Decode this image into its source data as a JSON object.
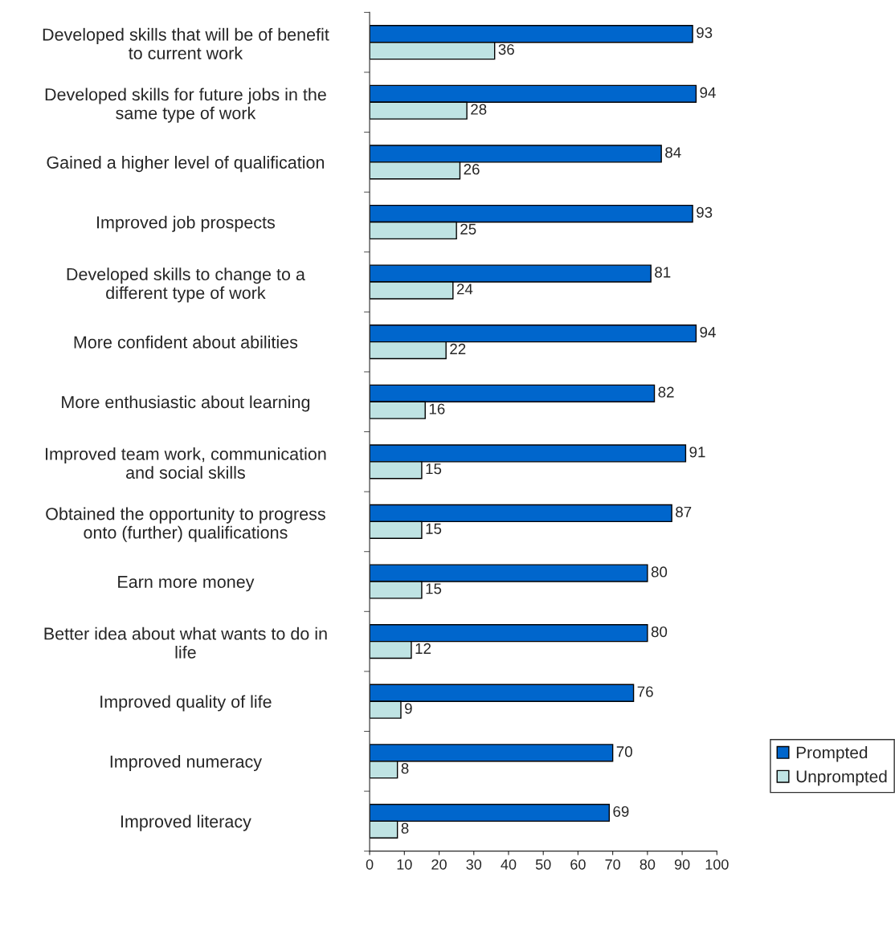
{
  "chart_data": {
    "type": "bar",
    "orientation": "horizontal",
    "categories": [
      "Developed skills that will be of benefit\nto current work",
      "Developed skills for future jobs in the\nsame type of work",
      "Gained a higher level of qualification",
      "Improved job prospects",
      "Developed skills to change to a\ndifferent type of work",
      "More confident about abilities",
      "More enthusiastic about learning",
      "Improved team work, communication\nand social skills",
      "Obtained the opportunity to progress\nonto (further) qualifications",
      "Earn more money",
      "Better idea about what wants to do in\nlife",
      "Improved quality of life",
      "Improved numeracy",
      "Improved literacy"
    ],
    "series": [
      {
        "name": "Prompted",
        "color": "#0066cc",
        "values": [
          93,
          94,
          84,
          93,
          81,
          94,
          82,
          91,
          87,
          80,
          80,
          76,
          70,
          69
        ]
      },
      {
        "name": "Unprompted",
        "color": "#bfe3e3",
        "values": [
          36,
          28,
          26,
          25,
          24,
          22,
          16,
          15,
          15,
          15,
          12,
          9,
          8,
          8
        ]
      }
    ],
    "xlim": [
      0,
      100
    ],
    "xticks": [
      0,
      10,
      20,
      30,
      40,
      50,
      60,
      70,
      80,
      90,
      100
    ],
    "data_labels": true,
    "grid": false,
    "legend": "bottom right"
  }
}
